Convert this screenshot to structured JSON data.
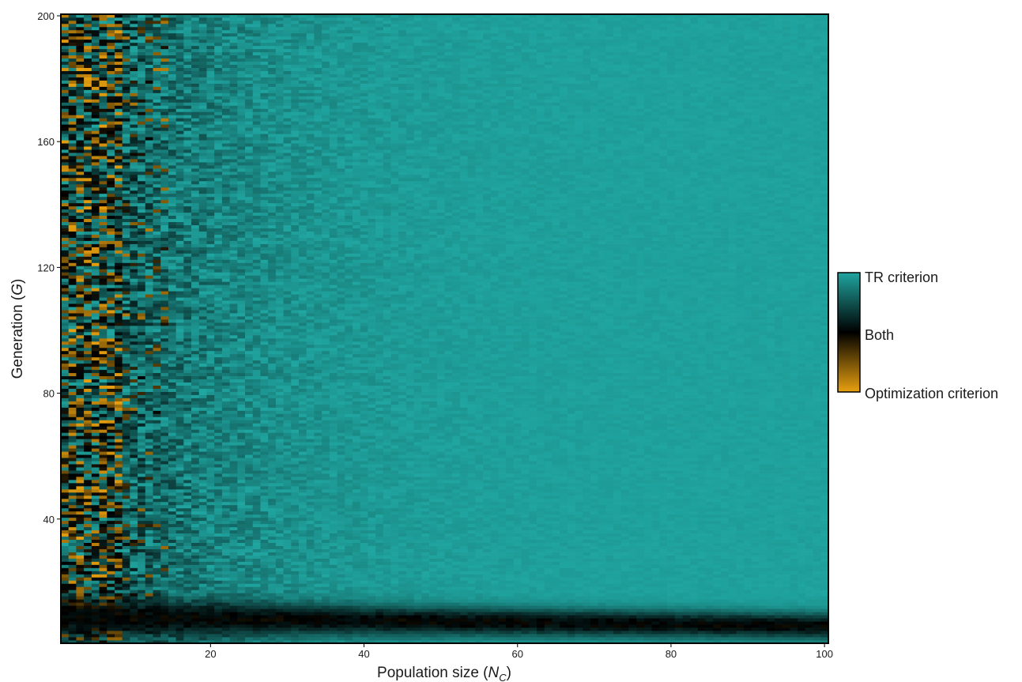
{
  "chart_data": {
    "type": "heatmap",
    "xlabel": "Population size",
    "xlabel_var": "N",
    "xlabel_sub": "C",
    "ylabel": "Generation",
    "ylabel_var": "G",
    "xlim": [
      1,
      100
    ],
    "ylim": [
      1,
      200
    ],
    "x_ticks": [
      20,
      40,
      60,
      80,
      100
    ],
    "y_ticks": [
      40,
      80,
      120,
      160,
      200
    ],
    "grid": false,
    "colorscale": {
      "stops": [
        "#e8a010",
        "#000000",
        "#20a5a0"
      ],
      "low_label": "Optimization criterion",
      "mid_label": "Both",
      "high_label": "TR criterion"
    },
    "legend_placement": "right",
    "pattern": "cell values near TR criterion for most population sizes; mixed Optimization criterion / Both values dominate at population sizes below about 30; a dark band (Both) appears at generations about 3-15 across all population sizes"
  }
}
